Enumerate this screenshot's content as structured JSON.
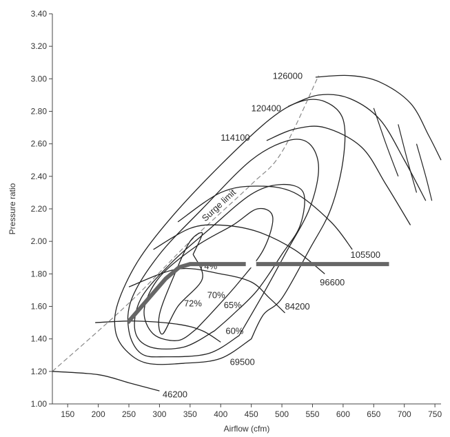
{
  "chart_data": {
    "type": "line",
    "title": "",
    "xlabel": "Airflow (cfm)",
    "ylabel": "Pressure ratio",
    "xlim": [
      125,
      760
    ],
    "ylim": [
      1.0,
      3.4
    ],
    "x_ticks": [
      "150",
      "200",
      "250",
      "300",
      "350",
      "400",
      "450",
      "500",
      "550",
      "600",
      "650",
      "700",
      "750"
    ],
    "y_ticks": [
      "1.00",
      "1.20",
      "1.40",
      "1.60",
      "1.80",
      "2.00",
      "2.20",
      "2.40",
      "2.60",
      "2.80",
      "3.00",
      "3.20",
      "3.40"
    ],
    "surge_limit": {
      "label": "Surge limit",
      "points": [
        [
          125,
          1.2
        ],
        [
          250,
          1.62
        ],
        [
          350,
          2.0
        ],
        [
          450,
          2.35
        ],
        [
          500,
          2.55
        ],
        [
          560,
          3.02
        ]
      ]
    },
    "speed_lines": [
      {
        "label": "46200",
        "points": [
          [
            125,
            1.2
          ],
          [
            200,
            1.18
          ],
          [
            250,
            1.13
          ],
          [
            300,
            1.08
          ]
        ],
        "label_at": [
          305,
          1.04
        ]
      },
      {
        "label": "69500",
        "points": [
          [
            195,
            1.5
          ],
          [
            260,
            1.51
          ],
          [
            330,
            1.49
          ],
          [
            370,
            1.45
          ],
          [
            400,
            1.38
          ]
        ],
        "label_at": [
          415,
          1.24
        ]
      },
      {
        "label": "84200",
        "points": [
          [
            250,
            1.72
          ],
          [
            330,
            1.83
          ],
          [
            400,
            1.8
          ],
          [
            450,
            1.75
          ],
          [
            480,
            1.65
          ],
          [
            505,
            1.56
          ]
        ],
        "label_at": [
          505,
          1.58
        ]
      },
      {
        "label": "96600",
        "points": [
          [
            290,
            1.95
          ],
          [
            350,
            2.08
          ],
          [
            400,
            2.1
          ],
          [
            460,
            2.06
          ],
          [
            520,
            1.95
          ],
          [
            570,
            1.8
          ]
        ],
        "label_at": [
          562,
          1.73
        ]
      },
      {
        "label": "105500",
        "points": [
          [
            330,
            2.12
          ],
          [
            400,
            2.3
          ],
          [
            460,
            2.34
          ],
          [
            520,
            2.3
          ],
          [
            580,
            2.12
          ],
          [
            615,
            1.95
          ]
        ],
        "label_at": [
          612,
          1.9
        ]
      },
      {
        "label": "114100",
        "points": [
          [
            475,
            2.62
          ],
          [
            520,
            2.69
          ],
          [
            570,
            2.7
          ],
          [
            630,
            2.58
          ],
          [
            670,
            2.35
          ],
          [
            710,
            2.1
          ]
        ],
        "label_at": [
          400,
          2.62
        ]
      },
      {
        "label": "120400",
        "points": [
          [
            510,
            2.83
          ],
          [
            560,
            2.9
          ],
          [
            610,
            2.88
          ],
          [
            660,
            2.75
          ],
          [
            700,
            2.5
          ],
          [
            735,
            2.25
          ]
        ],
        "label_at": [
          450,
          2.8
        ]
      },
      {
        "label": "126000",
        "points": [
          [
            555,
            3.01
          ],
          [
            610,
            3.02
          ],
          [
            660,
            2.98
          ],
          [
            710,
            2.85
          ],
          [
            740,
            2.65
          ],
          [
            760,
            2.5
          ]
        ],
        "label_at": [
          485,
          3.0
        ]
      }
    ],
    "efficiency_islands": [
      {
        "label": "74%",
        "points": [
          [
            355,
            1.92
          ],
          [
            370,
            1.77
          ],
          [
            330,
            1.6
          ],
          [
            305,
            1.43
          ],
          [
            300,
            1.55
          ],
          [
            325,
            1.8
          ],
          [
            350,
            2.0
          ],
          [
            370,
            2.05
          ],
          [
            355,
            1.92
          ]
        ],
        "label_at": [
          365,
          1.83
        ]
      },
      {
        "label": "72%",
        "points": [
          [
            360,
            1.46
          ],
          [
            330,
            1.39
          ],
          [
            290,
            1.43
          ],
          [
            275,
            1.58
          ],
          [
            300,
            1.78
          ],
          [
            360,
            1.97
          ],
          [
            420,
            2.1
          ],
          [
            460,
            2.2
          ],
          [
            485,
            2.15
          ],
          [
            470,
            1.95
          ],
          [
            430,
            1.75
          ],
          [
            390,
            1.58
          ],
          [
            360,
            1.46
          ]
        ],
        "label_at": [
          340,
          1.6
        ]
      },
      {
        "label": "70%",
        "points": [
          [
            390,
            1.45
          ],
          [
            340,
            1.35
          ],
          [
            285,
            1.35
          ],
          [
            260,
            1.45
          ],
          [
            270,
            1.65
          ],
          [
            320,
            1.87
          ],
          [
            380,
            2.07
          ],
          [
            450,
            2.29
          ],
          [
            500,
            2.35
          ],
          [
            535,
            2.3
          ],
          [
            530,
            2.1
          ],
          [
            500,
            1.92
          ],
          [
            460,
            1.7
          ],
          [
            420,
            1.55
          ],
          [
            390,
            1.45
          ]
        ],
        "label_at": [
          378,
          1.65
        ]
      },
      {
        "label": "65%",
        "points": [
          [
            430,
            1.42
          ],
          [
            380,
            1.31
          ],
          [
            310,
            1.29
          ],
          [
            270,
            1.31
          ],
          [
            250,
            1.45
          ],
          [
            255,
            1.65
          ],
          [
            300,
            1.92
          ],
          [
            370,
            2.2
          ],
          [
            450,
            2.5
          ],
          [
            510,
            2.62
          ],
          [
            545,
            2.6
          ],
          [
            560,
            2.45
          ],
          [
            545,
            2.2
          ],
          [
            505,
            1.92
          ],
          [
            470,
            1.68
          ],
          [
            430,
            1.42
          ]
        ],
        "label_at": [
          405,
          1.59
        ]
      },
      {
        "label": "60%",
        "points": [
          [
            450,
            1.4
          ],
          [
            400,
            1.28
          ],
          [
            340,
            1.25
          ],
          [
            280,
            1.25
          ],
          [
            245,
            1.33
          ],
          [
            228,
            1.45
          ],
          [
            232,
            1.62
          ],
          [
            265,
            1.88
          ],
          [
            320,
            2.15
          ],
          [
            400,
            2.47
          ],
          [
            480,
            2.75
          ],
          [
            530,
            2.86
          ],
          [
            570,
            2.86
          ],
          [
            600,
            2.75
          ],
          [
            600,
            2.5
          ],
          [
            580,
            2.2
          ],
          [
            545,
            1.95
          ],
          [
            500,
            1.65
          ],
          [
            470,
            1.55
          ],
          [
            450,
            1.4
          ]
        ],
        "label_at": [
          408,
          1.43
        ]
      }
    ],
    "extra_speed_ticks": [
      {
        "points": [
          [
            650,
            2.82
          ],
          [
            670,
            2.6
          ],
          [
            690,
            2.4
          ]
        ]
      },
      {
        "points": [
          [
            690,
            2.72
          ],
          [
            705,
            2.5
          ],
          [
            720,
            2.3
          ]
        ]
      },
      {
        "points": [
          [
            720,
            2.6
          ],
          [
            735,
            2.4
          ],
          [
            745,
            2.25
          ]
        ]
      }
    ],
    "operating_line": {
      "points": [
        [
          248,
          1.5
        ],
        [
          310,
          1.77
        ],
        [
          332,
          1.84
        ],
        [
          350,
          1.86
        ],
        [
          440,
          1.86
        ],
        [
          460,
          1.86
        ],
        [
          675,
          1.86
        ]
      ]
    }
  }
}
